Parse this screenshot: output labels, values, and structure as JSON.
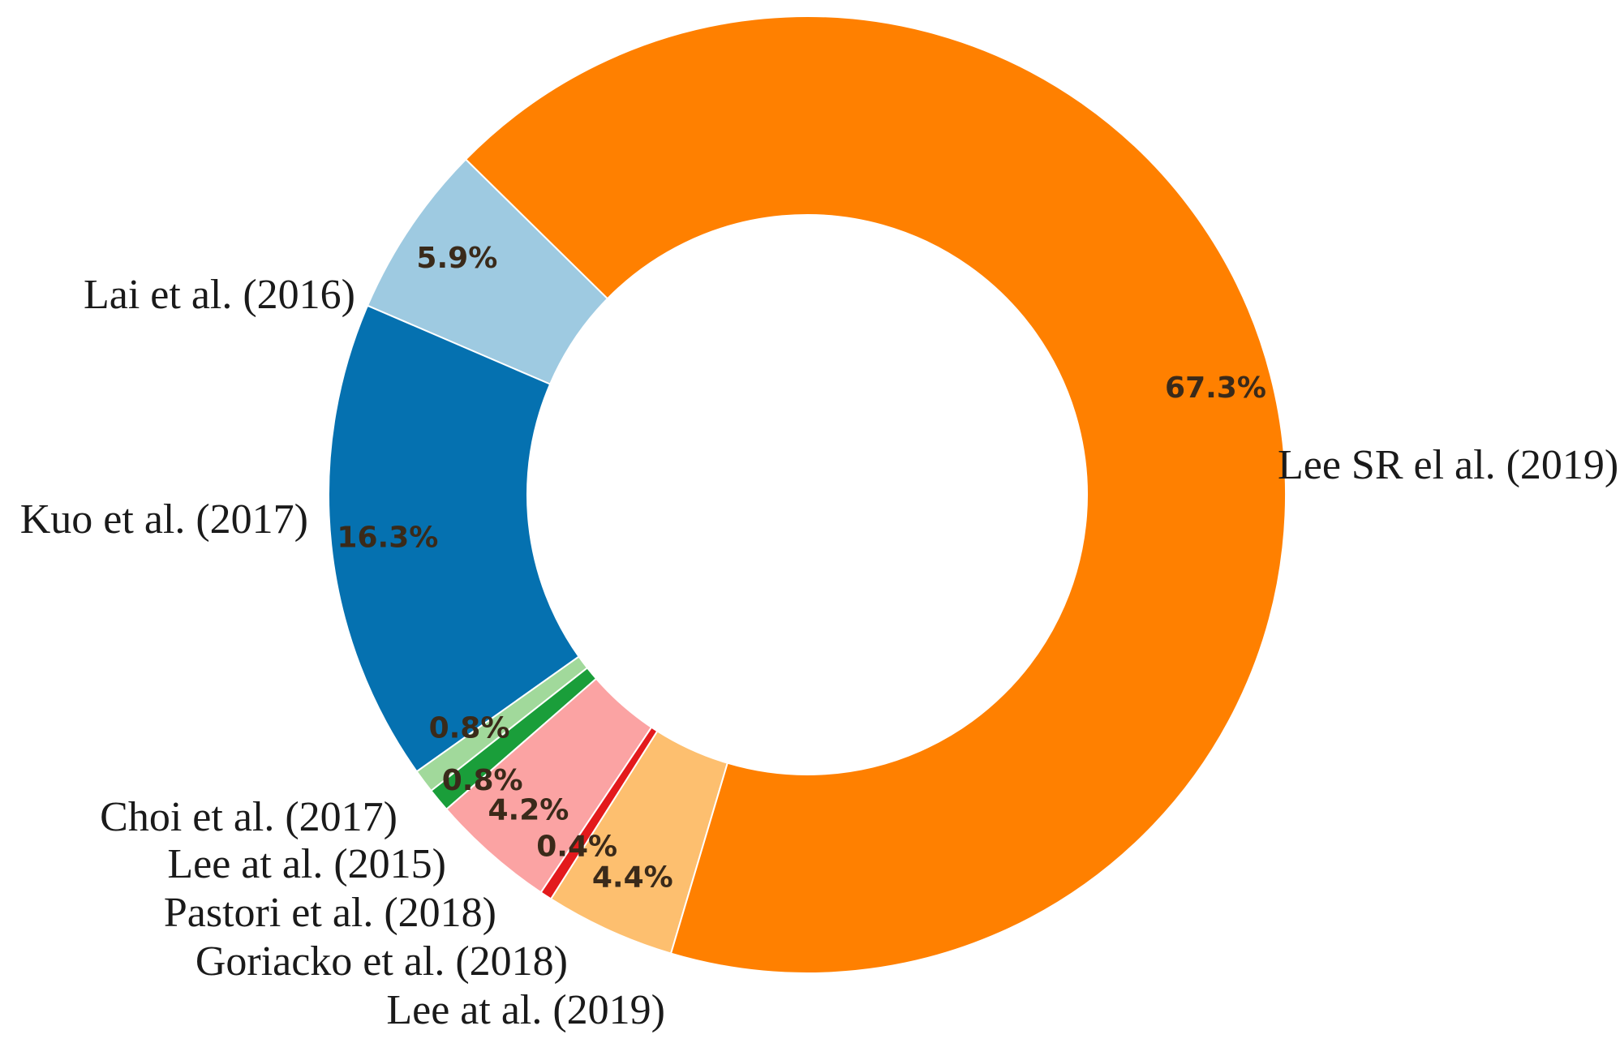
{
  "chart_data": {
    "type": "pie",
    "style": "donut",
    "title": "",
    "slices": [
      {
        "label": "Lai et al. (2016)",
        "value": 5.9,
        "pct_text": "5.9%",
        "color": "#9ecae1"
      },
      {
        "label": "Kuo et al. (2017)",
        "value": 16.3,
        "pct_text": "16.3%",
        "color": "#0571b0"
      },
      {
        "label": "Choi et al. (2017)",
        "value": 0.8,
        "pct_text": "0.8%",
        "color": "#a1d99b"
      },
      {
        "label": "Lee at al. (2015)",
        "value": 0.8,
        "pct_text": "0.8%",
        "color": "#1a9e3a"
      },
      {
        "label": "Pastori et al. (2018)",
        "value": 4.2,
        "pct_text": "4.2%",
        "color": "#fba3a3"
      },
      {
        "label": "Goriacko et al. (2018)",
        "value": 0.4,
        "pct_text": "0.4%",
        "color": "#e31a1c"
      },
      {
        "label": "Lee at al. (2019)",
        "value": 4.4,
        "pct_text": "4.4%",
        "color": "#fdbf6f"
      },
      {
        "label": "Lee SR el al. (2019)",
        "value": 67.3,
        "pct_text": "67.3%",
        "color": "#ff8000"
      }
    ]
  }
}
